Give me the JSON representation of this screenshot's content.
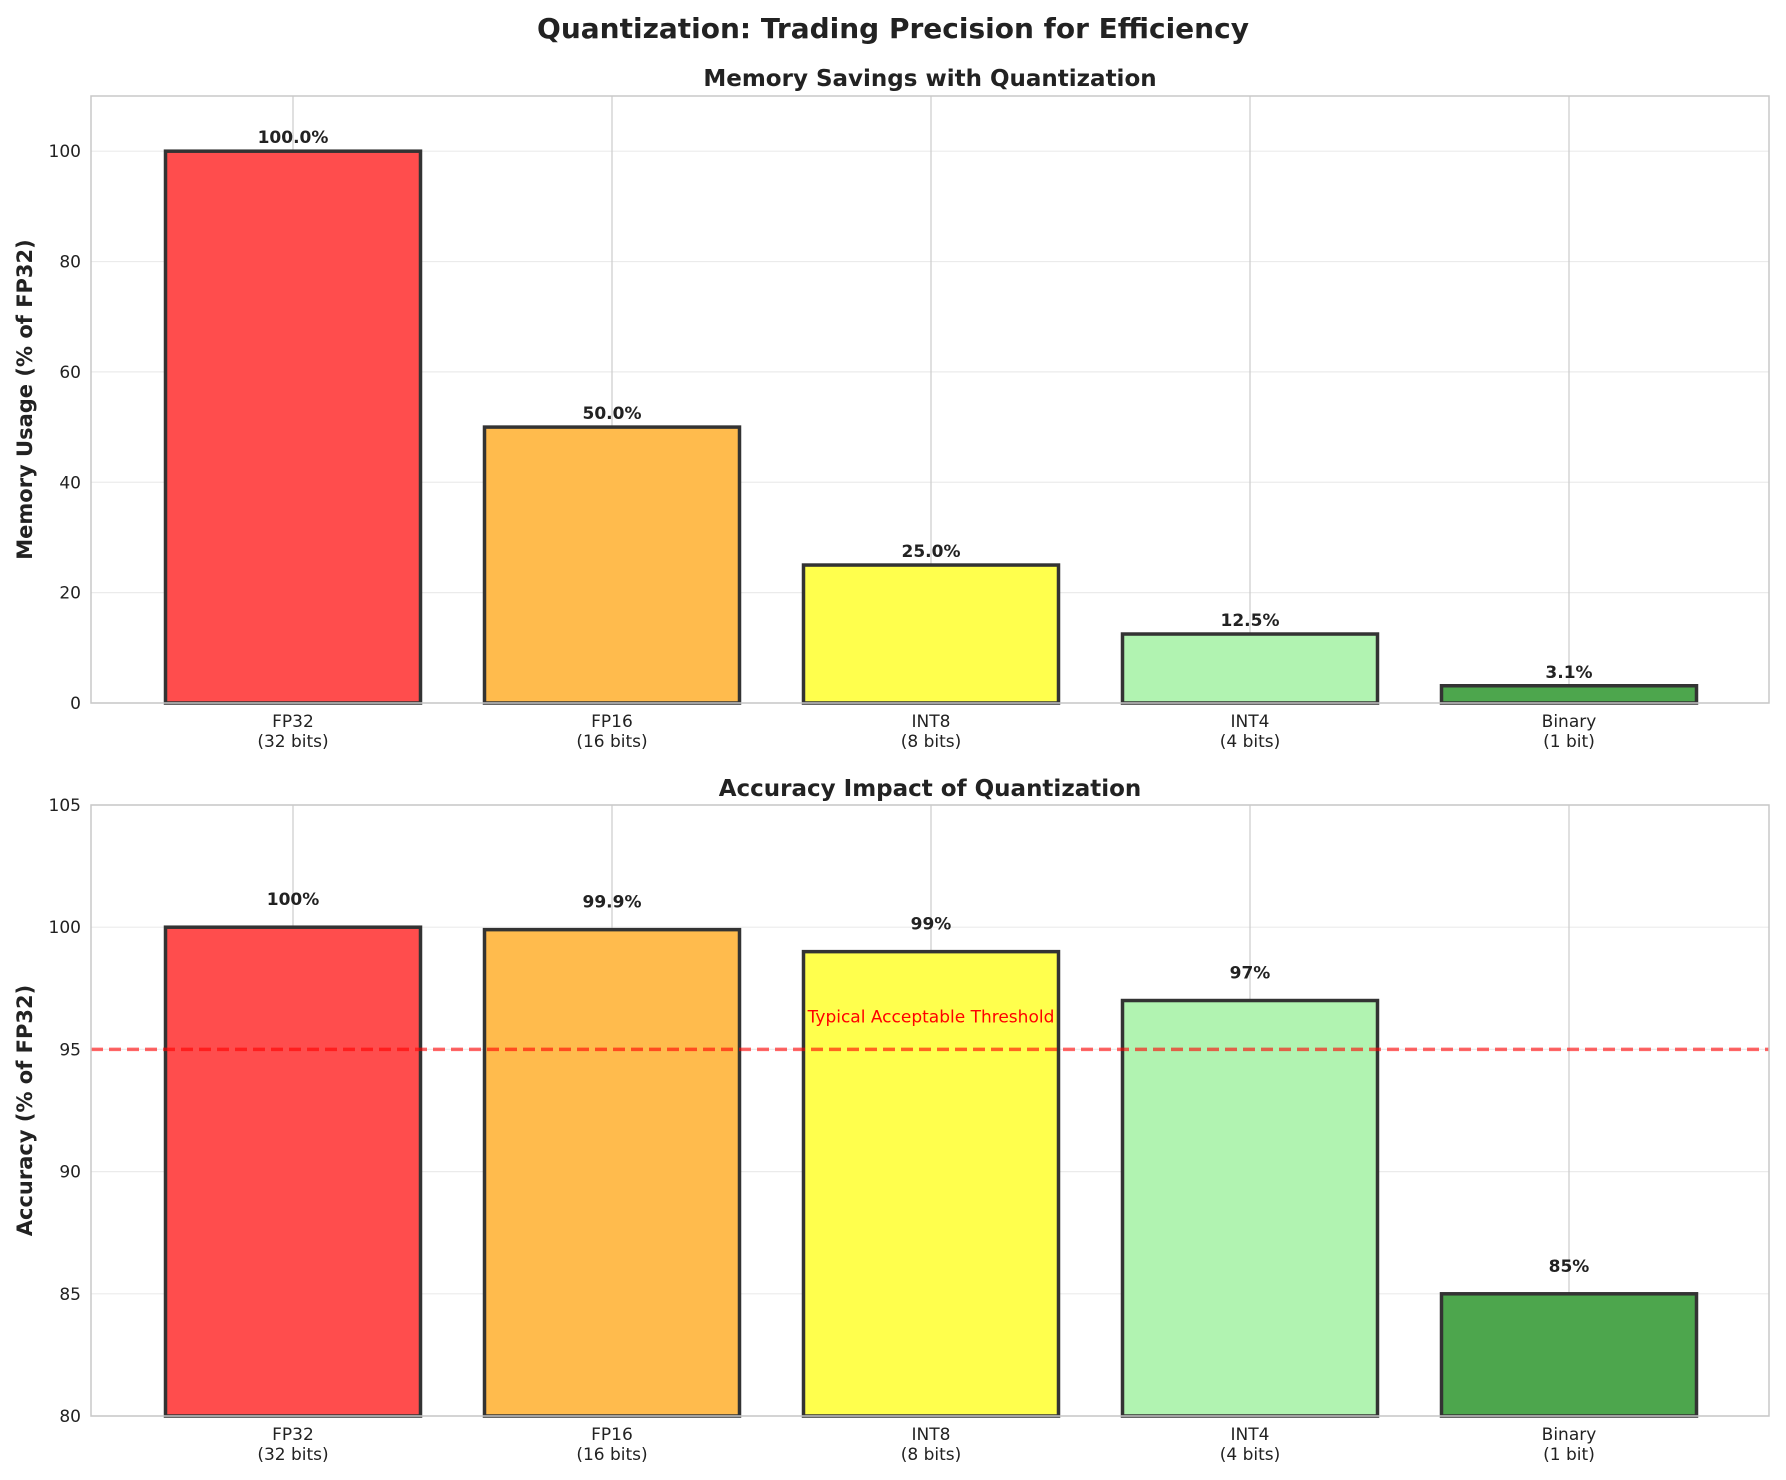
{
  "chart_data": [
    {
      "type": "bar",
      "title": "Memory Savings with Quantization",
      "xlabel": "",
      "ylabel": "Memory Usage (% of FP32)",
      "categories": [
        "FP32\n(32 bits)",
        "FP16\n(16 bits)",
        "INT8\n(8 bits)",
        "INT4\n(4 bits)",
        "Binary\n(1 bit)"
      ],
      "values": [
        100,
        50,
        25,
        12.5,
        3.125
      ],
      "data_labels": [
        "100.0%",
        "50.0%",
        "25.0%",
        "12.5%",
        "3.1%"
      ],
      "ylim": [
        0,
        110
      ],
      "yticks": [
        0,
        20,
        40,
        60,
        80,
        100
      ],
      "grid": true
    },
    {
      "type": "bar",
      "title": "Accuracy Impact of Quantization",
      "xlabel": "",
      "ylabel": "Accuracy (% of FP32)",
      "categories": [
        "FP32\n(32 bits)",
        "FP16\n(16 bits)",
        "INT8\n(8 bits)",
        "INT4\n(4 bits)",
        "Binary\n(1 bit)"
      ],
      "values": [
        100,
        99.9,
        99,
        97,
        85
      ],
      "data_labels": [
        "100%",
        "99.9%",
        "99%",
        "97%",
        "85%"
      ],
      "ylim": [
        80,
        105
      ],
      "yticks": [
        80,
        85,
        90,
        95,
        100,
        105
      ],
      "grid": true,
      "reference_line": {
        "y": 95,
        "label": "Typical Acceptable Threshold",
        "color": "#ff0000",
        "style": "dashed"
      }
    }
  ],
  "suptitle": "Quantization: Trading Precision for Efficiency",
  "bar_colors": [
    "#ff4d4d",
    "#ffbb4d",
    "#ffff4d",
    "#b1f3b1",
    "#4da64d"
  ],
  "edge_color": "#333333"
}
